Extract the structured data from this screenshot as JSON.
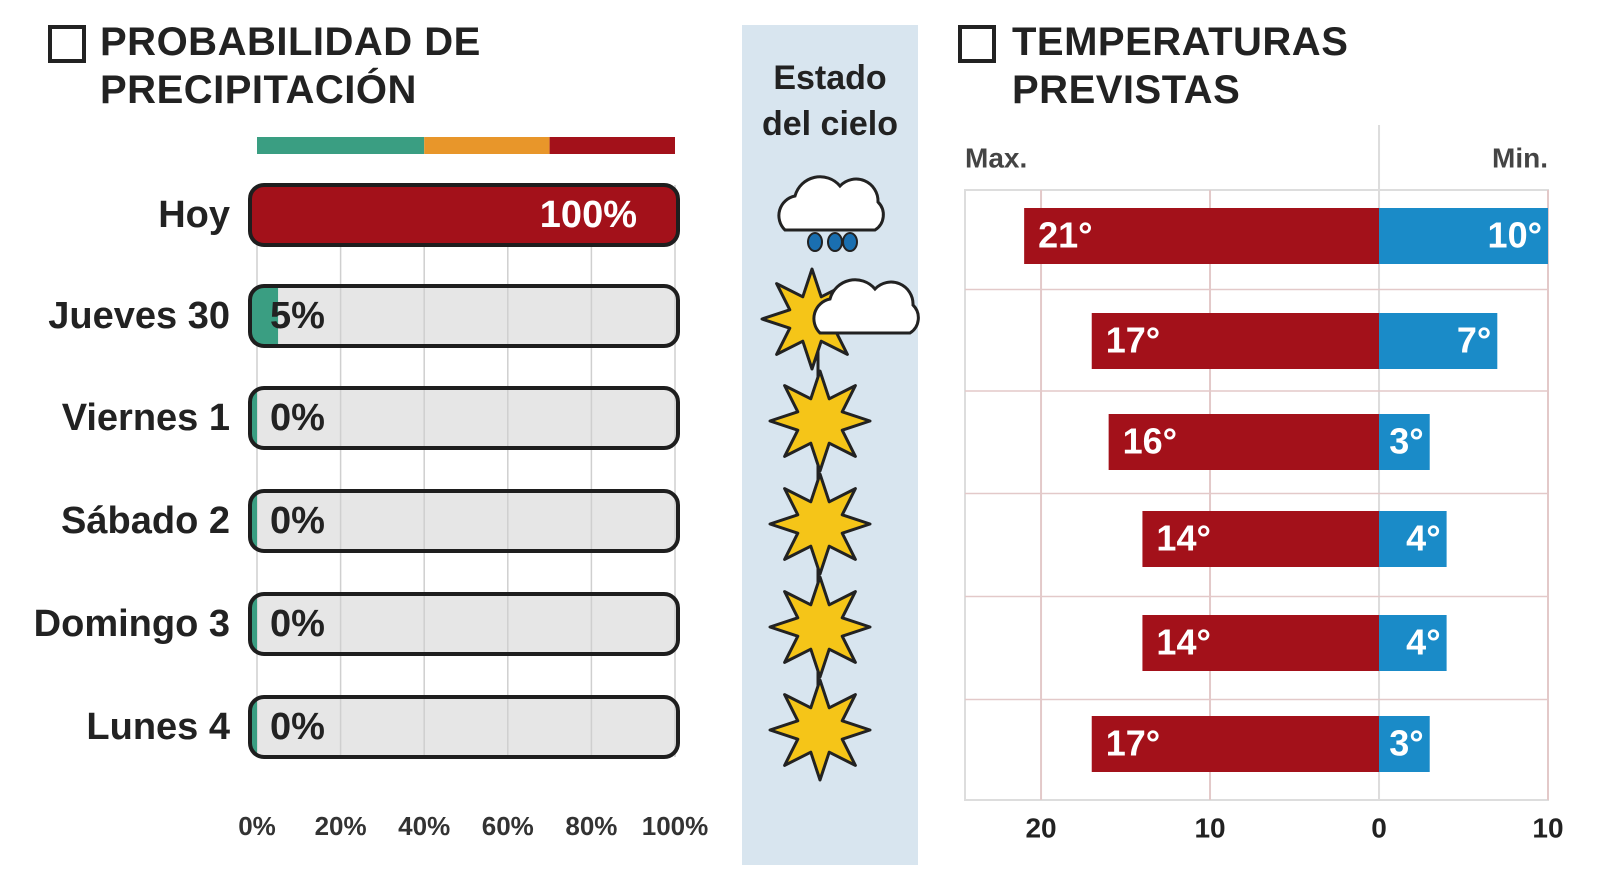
{
  "chart_data": [
    {
      "type": "precip_bar",
      "title": "PROBABILIDAD DE PRECIPITACIÓN",
      "categories": [
        "Hoy",
        "Jueves 30",
        "Viernes 1",
        "Sábado 2",
        "Domingo 3",
        "Lunes 4"
      ],
      "values": [
        100,
        5,
        0,
        0,
        0,
        0
      ],
      "value_labels": [
        "100%",
        "5%",
        "0%",
        "0%",
        "0%",
        "0%"
      ],
      "color_bands": [
        {
          "from": 0,
          "to": 40,
          "color": "#3a9e82"
        },
        {
          "from": 40,
          "to": 70,
          "color": "#e8962a"
        },
        {
          "from": 70,
          "to": 100,
          "color": "#a3111a"
        }
      ],
      "xlim": [
        0,
        100
      ],
      "xticks": [
        {
          "value": 0,
          "label": "0%"
        },
        {
          "value": 20,
          "label": "20%"
        },
        {
          "value": 40,
          "label": "40%"
        },
        {
          "value": 60,
          "label": "60%"
        },
        {
          "value": 80,
          "label": "80%"
        },
        {
          "value": 100,
          "label": "100%"
        }
      ],
      "grid": true
    },
    {
      "type": "diverging_bar",
      "title": "TEMPERATURAS PREVISTAS",
      "series": [
        {
          "name": "Max.",
          "color": "#a3111a",
          "mirrored": true,
          "values": [
            21,
            17,
            16,
            14,
            14,
            17
          ],
          "value_labels": [
            "21°",
            "17°",
            "16°",
            "14°",
            "14°",
            "17°"
          ]
        },
        {
          "name": "Min.",
          "color": "#1a8bc8",
          "mirrored": false,
          "values": [
            10,
            7,
            3,
            4,
            4,
            3
          ],
          "value_labels": [
            "10°",
            "7°",
            "3°",
            "4°",
            "4°",
            "3°"
          ]
        }
      ],
      "xlim": [
        -24.5,
        10
      ],
      "xticks": [
        {
          "value": -20,
          "label": "20"
        },
        {
          "value": -10,
          "label": "10"
        },
        0,
        10
      ],
      "grid": true
    }
  ],
  "sky_column": {
    "title": "Estado del cielo"
  }
}
